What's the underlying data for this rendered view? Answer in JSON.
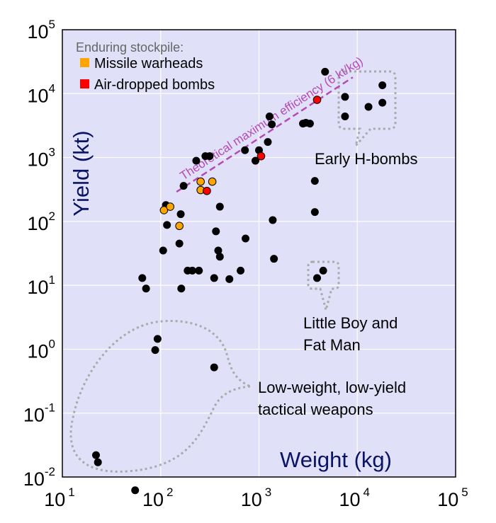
{
  "chart_data": {
    "type": "scatter",
    "xlabel": "Weight (kg)",
    "ylabel": "Yield (kt)",
    "x_scale": "log",
    "y_scale": "log",
    "xlim": [
      10,
      100000
    ],
    "ylim": [
      0.01,
      100000
    ],
    "x_ticks": [
      {
        "base": "10",
        "exp": "1"
      },
      {
        "base": "10",
        "exp": "2"
      },
      {
        "base": "10",
        "exp": "3"
      },
      {
        "base": "10",
        "exp": "4"
      },
      {
        "base": "10",
        "exp": "5"
      }
    ],
    "y_ticks": [
      {
        "base": "10",
        "exp": "-2"
      },
      {
        "base": "10",
        "exp": "-1"
      },
      {
        "base": "10",
        "exp": "0"
      },
      {
        "base": "10",
        "exp": "1"
      },
      {
        "base": "10",
        "exp": "2"
      },
      {
        "base": "10",
        "exp": "3"
      },
      {
        "base": "10",
        "exp": "4"
      },
      {
        "base": "10",
        "exp": "5"
      }
    ],
    "grid": true,
    "background_color": "#e0e0f8",
    "grid_color": "#ffffff",
    "legend": {
      "title": "Enduring stockpile:",
      "placement": "top-left",
      "entries": [
        {
          "label": "Missile warheads",
          "color": "#ffa500"
        },
        {
          "label": "Air-dropped bombs",
          "color": "#ff0000"
        }
      ]
    },
    "efficiency_line": {
      "label": "Theoretical maximum efficiency (6 kt/kg)",
      "kt_per_kg": 6,
      "color": "#b44bb4"
    },
    "series": [
      {
        "category": "historical",
        "color": "#000000",
        "points": [
          [
            22,
            0.022
          ],
          [
            23,
            0.017
          ],
          [
            55,
            0.0062
          ],
          [
            88,
            0.97
          ],
          [
            93,
            1.45
          ],
          [
            350,
            0.52
          ],
          [
            65,
            13
          ],
          [
            71,
            8.9
          ],
          [
            106,
            35
          ],
          [
            113,
            180
          ],
          [
            116,
            88
          ],
          [
            155,
            45
          ],
          [
            160,
            130
          ],
          [
            162,
            8.9
          ],
          [
            171,
            360
          ],
          [
            188,
            17
          ],
          [
            210,
            17
          ],
          [
            230,
            890
          ],
          [
            245,
            17
          ],
          [
            285,
            1050
          ],
          [
            315,
            1050
          ],
          [
            350,
            13
          ],
          [
            365,
            70
          ],
          [
            385,
            35
          ],
          [
            400,
            170
          ],
          [
            400,
            28
          ],
          [
            500,
            12.5
          ],
          [
            650,
            17
          ],
          [
            720,
            1300
          ],
          [
            730,
            54
          ],
          [
            920,
            890
          ],
          [
            1000,
            1300
          ],
          [
            1230,
            1750
          ],
          [
            1280,
            4400
          ],
          [
            1350,
            3300
          ],
          [
            1380,
            105
          ],
          [
            1420,
            26
          ],
          [
            2800,
            3400
          ],
          [
            3000,
            3500
          ],
          [
            3300,
            3400
          ],
          [
            3700,
            430
          ],
          [
            3700,
            140
          ],
          [
            3900,
            13
          ],
          [
            4500,
            17
          ],
          [
            4700,
            22000
          ],
          [
            7500,
            8900
          ],
          [
            7500,
            4400
          ],
          [
            13000,
            6200
          ],
          [
            18000,
            13500
          ],
          [
            18000,
            7200
          ]
        ]
      },
      {
        "category": "Missile warheads",
        "color": "#ffa500",
        "points": [
          [
            108,
            150
          ],
          [
            125,
            170
          ],
          [
            155,
            85
          ],
          [
            255,
            420
          ],
          [
            255,
            310
          ],
          [
            335,
            420
          ]
        ]
      },
      {
        "category": "Air-dropped bombs",
        "color": "#ff0000",
        "points": [
          [
            295,
            300
          ],
          [
            1050,
            1050
          ],
          [
            3900,
            8000
          ]
        ]
      }
    ],
    "annotations": [
      {
        "lines": [
          "Early H-bombs"
        ]
      },
      {
        "lines": [
          "Little Boy and",
          "Fat Man"
        ]
      },
      {
        "lines": [
          "Low-weight, low-yield",
          "tactical weapons"
        ]
      }
    ]
  }
}
